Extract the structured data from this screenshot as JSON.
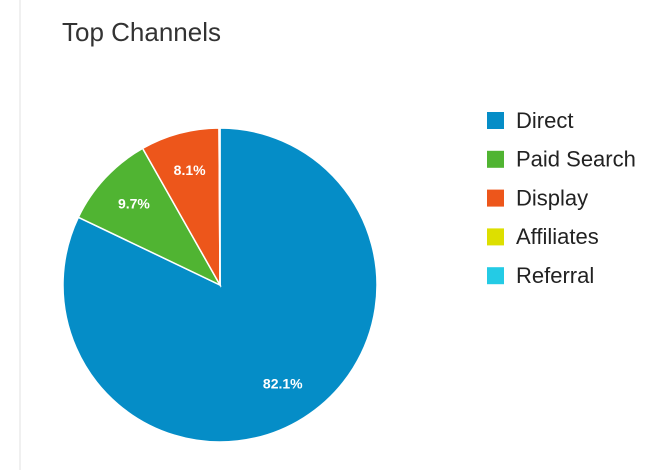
{
  "chart_data": {
    "type": "pie",
    "title": "Top Channels",
    "categories": [
      "Direct",
      "Paid Search",
      "Display",
      "Affiliates",
      "Referral"
    ],
    "values": [
      82.1,
      9.7,
      8.1,
      0.05,
      0.05
    ],
    "value_labels": [
      "82.1%",
      "9.7%",
      "8.1%",
      null,
      null
    ],
    "colors": [
      "#058dc7",
      "#50b432",
      "#ed561b",
      "#dddf00",
      "#24cbe5"
    ],
    "legend": "right"
  }
}
